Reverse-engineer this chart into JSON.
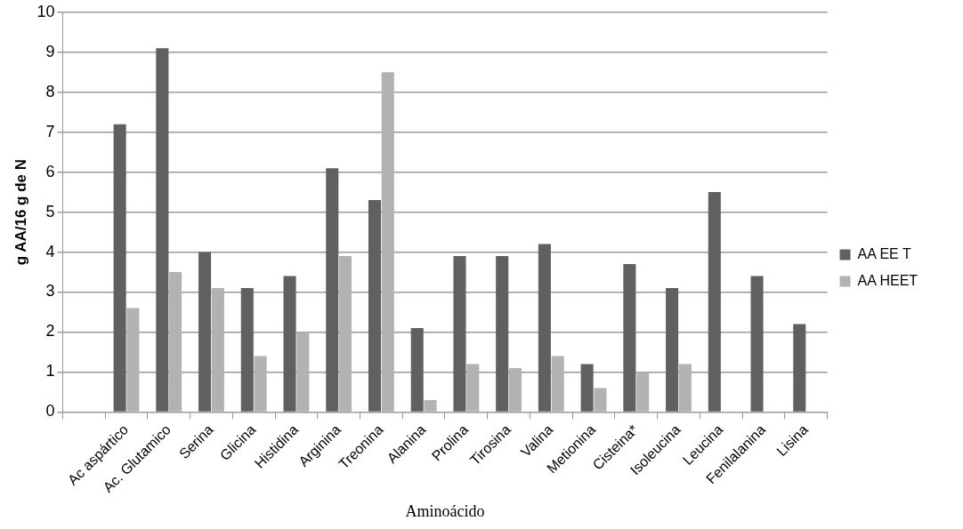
{
  "chart_data": {
    "type": "bar",
    "xlabel": "Aminoácido",
    "ylabel": "g AA/16 g de N",
    "categories": [
      null,
      "Ac aspártico",
      "Ac. Glutamico",
      "Serina",
      "Glicina",
      "Histidina",
      "Arginina",
      "Treonina",
      "Alanina",
      "Prolina",
      "Tirosina",
      "Valina",
      "Metionina",
      "Cisteina*",
      "Isoleucina",
      "Leucina",
      "Fenilalanina",
      "Lisina"
    ],
    "series": [
      {
        "name": "AA EE T",
        "color": "#606060",
        "values": [
          null,
          7.2,
          9.1,
          4.0,
          3.1,
          3.4,
          6.1,
          5.3,
          2.1,
          3.9,
          3.9,
          4.2,
          1.2,
          3.7,
          3.1,
          5.5,
          3.4,
          2.2
        ]
      },
      {
        "name": "AA HEET",
        "color": "#b2b2b2",
        "values": [
          null,
          2.6,
          3.5,
          3.1,
          1.4,
          2.0,
          3.9,
          8.5,
          0.3,
          1.2,
          1.1,
          1.4,
          0.6,
          1.0,
          1.2,
          null,
          null,
          null
        ]
      }
    ],
    "ylim": [
      0,
      10
    ],
    "yticks": [
      0,
      1,
      2,
      3,
      4,
      5,
      6,
      7,
      8,
      9,
      10
    ],
    "grid": "y",
    "legend": "right"
  }
}
